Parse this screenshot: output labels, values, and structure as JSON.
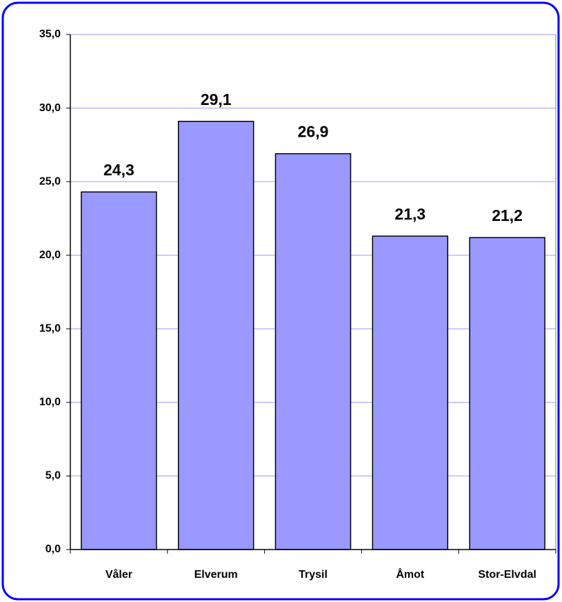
{
  "chart_data": {
    "type": "bar",
    "categories": [
      "Våler",
      "Elverum",
      "Trysil",
      "Åmot",
      "Stor-Elvdal"
    ],
    "values": [
      24.3,
      29.1,
      26.9,
      21.3,
      21.2
    ],
    "value_labels": [
      "24,3",
      "29,1",
      "26,9",
      "21,3",
      "21,2"
    ],
    "color": "#9999ff",
    "ylim": [
      0,
      35
    ],
    "yticks": [
      {
        "value": 0,
        "label": "0,0"
      },
      {
        "value": 5,
        "label": "5,0"
      },
      {
        "value": 10,
        "label": "10,0"
      },
      {
        "value": 15,
        "label": "15,0"
      },
      {
        "value": 20,
        "label": "20,0"
      },
      {
        "value": 25,
        "label": "25,0"
      },
      {
        "value": 30,
        "label": "30,0"
      },
      {
        "value": 35,
        "label": "35,0"
      }
    ],
    "grid": true
  }
}
